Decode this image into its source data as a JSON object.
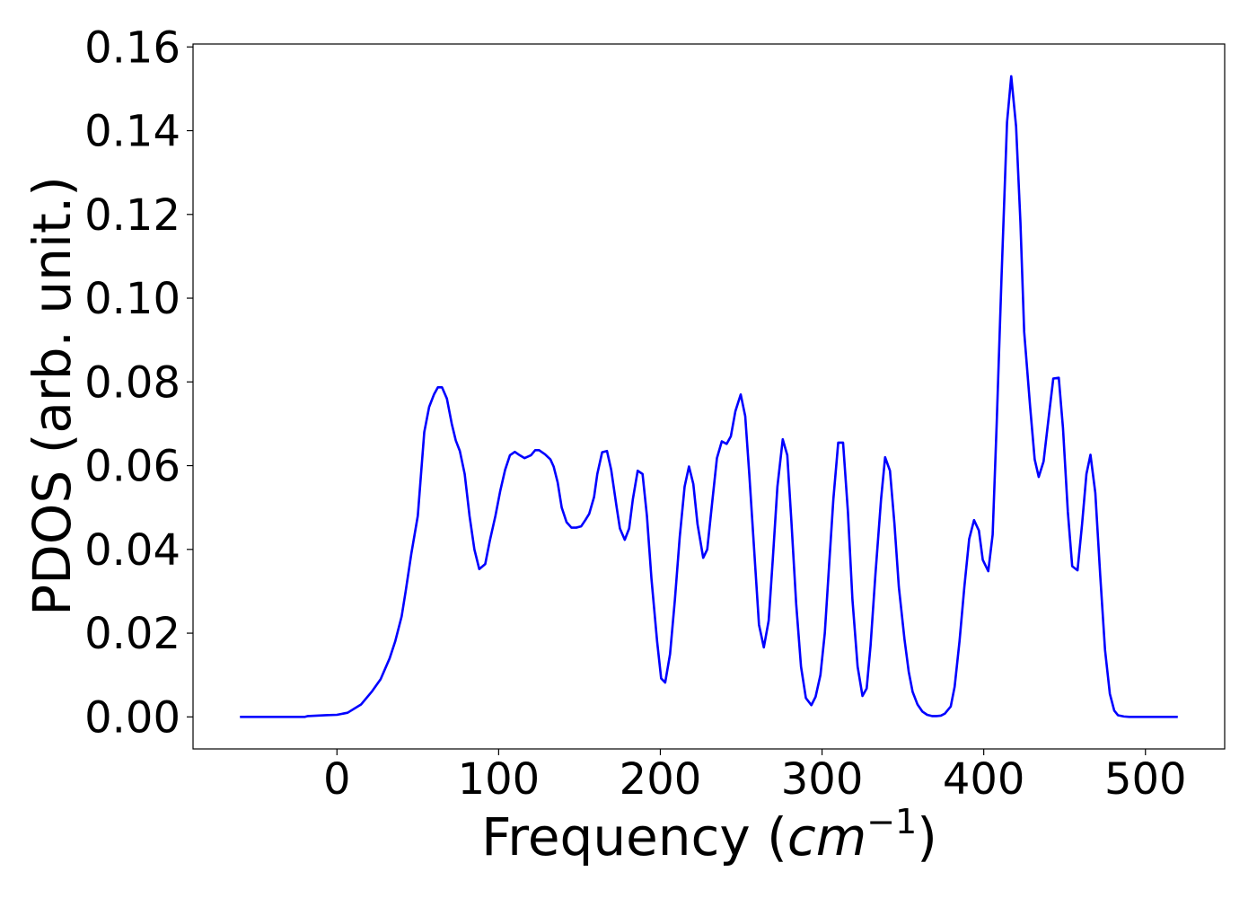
{
  "chart_data": {
    "type": "line",
    "xlabel": [
      "Frequency (",
      "cm",
      "−1",
      ")"
    ],
    "ylabel": "PDOS (arb. unit.)",
    "color": "#0000ff",
    "xlim": [
      -89,
      549
    ],
    "ylim": [
      -0.00765,
      0.1607
    ],
    "xticks": [
      0,
      100,
      200,
      300,
      400,
      500
    ],
    "yticks": [
      {
        "value": 0,
        "label": "0.00"
      },
      0.02,
      0.04,
      0.06,
      0.08,
      {
        "value": 0.1,
        "label": "0.10"
      },
      0.12,
      0.14,
      0.16
    ],
    "x": [
      -60,
      -50,
      -40,
      -30,
      -20,
      -18,
      -7,
      0,
      6.6,
      15,
      21.5,
      27,
      32.6,
      36,
      40,
      42.5,
      46,
      50,
      52,
      54,
      57,
      60,
      62.4,
      65,
      68,
      71,
      73.5,
      76,
      79,
      82,
      85,
      88,
      91.7,
      94.5,
      98,
      101,
      104,
      107,
      110,
      113,
      116,
      120,
      122.6,
      125,
      128.7,
      132,
      134,
      136.5,
      139,
      142,
      145,
      148,
      151,
      153.6,
      156,
      159,
      161,
      164,
      167,
      169.6,
      173,
      175,
      178,
      180.7,
      183,
      186,
      189,
      191.7,
      194.5,
      198,
      200.5,
      203,
      206,
      209,
      212,
      215,
      217.7,
      220.4,
      223,
      226.5,
      229,
      232,
      235,
      238,
      241,
      243.6,
      246.4,
      249.7,
      252.5,
      255,
      258,
      261,
      264,
      267,
      269.6,
      272.4,
      275.7,
      278.5,
      281,
      284,
      287,
      290,
      293.4,
      296,
      299,
      301.7,
      304,
      307,
      310,
      313,
      316,
      318.8,
      322,
      325,
      327.6,
      330,
      333,
      336.5,
      339,
      342,
      344.8,
      347.5,
      351,
      353.6,
      356,
      359,
      362,
      365,
      368,
      370.7,
      373.5,
      376,
      379.6,
      382,
      385,
      388,
      391,
      394,
      397,
      399.4,
      402.8,
      405.5,
      408,
      411,
      414.4,
      417,
      420,
      422.7,
      425,
      428.7,
      431.5,
      434,
      437,
      440,
      443,
      446.4,
      449,
      452,
      454.7,
      458,
      460.8,
      463.5,
      466,
      469,
      472,
      475,
      478,
      480.7,
      483,
      486.7,
      490,
      500,
      510,
      520
    ],
    "values": [
      0,
      0,
      0,
      0,
      0,
      0.0002,
      0.0004,
      0.0005,
      0.001,
      0.003,
      0.006,
      0.009,
      0.014,
      0.018,
      0.024,
      0.03,
      0.039,
      0.048,
      0.058,
      0.068,
      0.074,
      0.077,
      0.0787,
      0.0787,
      0.076,
      0.07,
      0.066,
      0.0635,
      0.058,
      0.048,
      0.04,
      0.0353,
      0.0365,
      0.042,
      0.048,
      0.054,
      0.059,
      0.0625,
      0.0633,
      0.0625,
      0.0618,
      0.0625,
      0.0637,
      0.0637,
      0.0627,
      0.0615,
      0.0598,
      0.056,
      0.05,
      0.0465,
      0.0452,
      0.0452,
      0.0455,
      0.047,
      0.0485,
      0.0525,
      0.058,
      0.0632,
      0.0635,
      0.059,
      0.05,
      0.045,
      0.0423,
      0.045,
      0.052,
      0.0588,
      0.058,
      0.048,
      0.033,
      0.018,
      0.0092,
      0.0082,
      0.015,
      0.028,
      0.043,
      0.055,
      0.0598,
      0.0556,
      0.046,
      0.038,
      0.04,
      0.051,
      0.0618,
      0.0658,
      0.0652,
      0.067,
      0.073,
      0.077,
      0.0718,
      0.058,
      0.04,
      0.022,
      0.0166,
      0.023,
      0.038,
      0.055,
      0.0663,
      0.0625,
      0.047,
      0.027,
      0.012,
      0.0045,
      0.0028,
      0.0048,
      0.01,
      0.02,
      0.034,
      0.052,
      0.0655,
      0.0655,
      0.049,
      0.028,
      0.012,
      0.005,
      0.0068,
      0.017,
      0.034,
      0.052,
      0.062,
      0.0588,
      0.046,
      0.031,
      0.0185,
      0.0108,
      0.006,
      0.003,
      0.0013,
      0.0005,
      0.0002,
      0.0002,
      0.0003,
      0.0008,
      0.0025,
      0.0072,
      0.018,
      0.031,
      0.0425,
      0.047,
      0.0445,
      0.0375,
      0.0348,
      0.0435,
      0.07,
      0.105,
      0.142,
      0.153,
      0.141,
      0.118,
      0.092,
      0.074,
      0.0615,
      0.0573,
      0.061,
      0.071,
      0.0808,
      0.081,
      0.069,
      0.049,
      0.036,
      0.035,
      0.046,
      0.058,
      0.0626,
      0.0535,
      0.034,
      0.016,
      0.0055,
      0.0015,
      0.0004,
      0.0001,
      0,
      0,
      0,
      0
    ]
  }
}
